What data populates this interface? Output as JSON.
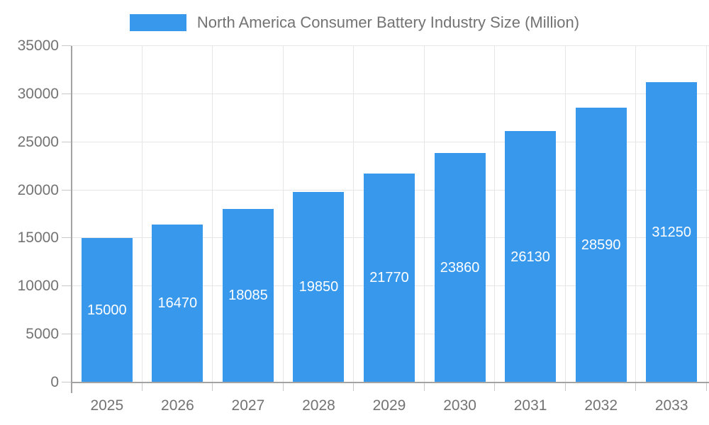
{
  "chart_data": {
    "type": "bar",
    "title": "North America Consumer Battery Industry Size (Million)",
    "legend_entries": [
      "North America Consumer Battery Industry Size (Million)"
    ],
    "legend_position": "top-center",
    "categories": [
      "2025",
      "2026",
      "2027",
      "2028",
      "2029",
      "2030",
      "2031",
      "2032",
      "2033"
    ],
    "values": [
      15000,
      16470,
      18085,
      19850,
      21770,
      23860,
      26130,
      28590,
      31250
    ],
    "bar_value_labels": [
      "15000",
      "16470",
      "18085",
      "19850",
      "21770",
      "23860",
      "26130",
      "28590",
      "31250"
    ],
    "xlabel": "",
    "ylabel": "",
    "ylim": [
      0,
      35000
    ],
    "ytick_step": 5000,
    "yticks": [
      "0",
      "5000",
      "10000",
      "15000",
      "20000",
      "25000",
      "30000",
      "35000"
    ],
    "grid": true,
    "colors": {
      "bar": "#3898EC",
      "axis_label_text": "#737373",
      "bar_value_text": "#ffffff",
      "gridline": "#e6e6e6",
      "axis_line": "#a3a3a3",
      "tick": "#c9c9c9",
      "background": "#ffffff"
    }
  }
}
